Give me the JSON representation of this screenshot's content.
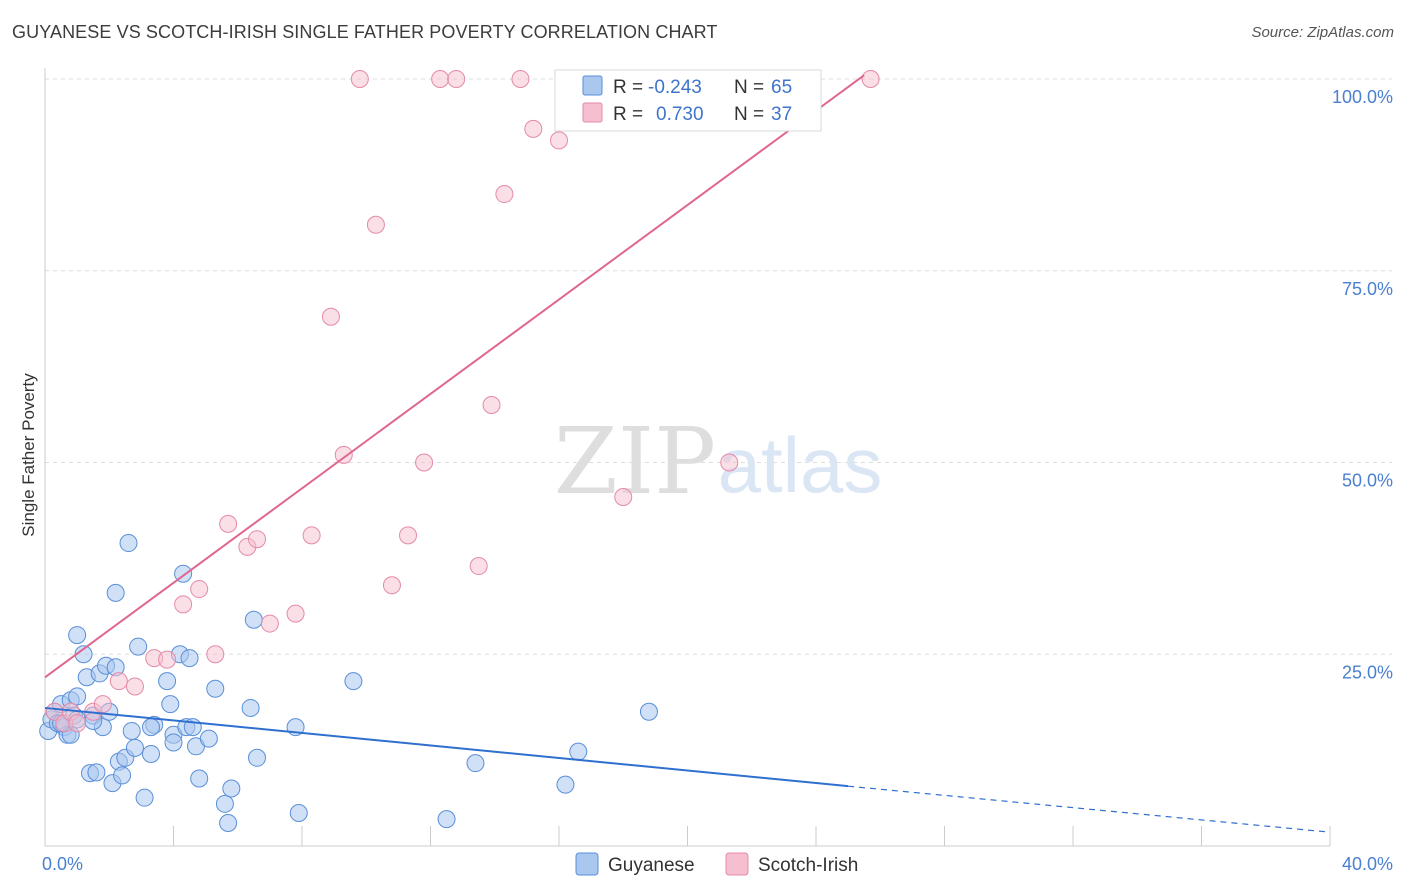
{
  "header": {
    "title": "GUYANESE VS SCOTCH-IRISH SINGLE FATHER POVERTY CORRELATION CHART",
    "source": "Source: ZipAtlas.com"
  },
  "watermark": {
    "zip": "ZIP",
    "atlas": "atlas"
  },
  "colors": {
    "guyanese_fill": "#a9c7ef",
    "guyanese_stroke": "#5a8fd8",
    "guyanese_line": "#2f6fcf",
    "scotch_fill": "#f5bfd0",
    "scotch_stroke": "#e58aa8",
    "scotch_line": "#e06690",
    "tick_label": "#4a7fd1",
    "grid": "#dddddd"
  },
  "stats": [
    {
      "r_label": "R =",
      "r_value": "-0.243",
      "n_label": "N =",
      "n_value": "65"
    },
    {
      "r_label": "R =",
      "r_value": "0.730",
      "n_label": "N =",
      "n_value": "37"
    }
  ],
  "chart_data": {
    "type": "scatter",
    "title": "GUYANESE VS SCOTCH-IRISH SINGLE FATHER POVERTY CORRELATION CHART",
    "xlabel": "",
    "ylabel": "Single Father Poverty",
    "xlim": [
      0,
      40
    ],
    "ylim": [
      0,
      102
    ],
    "x_tick_labels": [
      "0.0%",
      "40.0%"
    ],
    "y_ticks": [
      25,
      50,
      75,
      100
    ],
    "y_tick_labels": [
      "25.0%",
      "50.0%",
      "75.0%",
      "100.0%"
    ],
    "grid": true,
    "legend_position": "bottom-center",
    "series": [
      {
        "name": "Guyanese",
        "r": -0.243,
        "n": 65,
        "trend": {
          "x_start": 0,
          "y_start": 18.0,
          "x_end": 25.0,
          "y_end": 7.8,
          "dashed_to_x": 40,
          "dashed_to_y": 1.8
        },
        "points": [
          [
            0.1,
            15.0
          ],
          [
            0.2,
            16.5
          ],
          [
            0.3,
            17.5
          ],
          [
            0.4,
            16.0
          ],
          [
            0.5,
            18.5
          ],
          [
            0.6,
            15.5
          ],
          [
            0.7,
            14.5
          ],
          [
            0.8,
            19.0
          ],
          [
            0.9,
            17.0
          ],
          [
            1.0,
            16.5
          ],
          [
            1.0,
            27.5
          ],
          [
            1.2,
            25.0
          ],
          [
            1.3,
            22.0
          ],
          [
            1.4,
            9.5
          ],
          [
            1.5,
            17.0
          ],
          [
            1.6,
            9.6
          ],
          [
            1.7,
            22.5
          ],
          [
            1.8,
            15.5
          ],
          [
            1.9,
            23.5
          ],
          [
            2.0,
            17.5
          ],
          [
            2.1,
            8.2
          ],
          [
            2.2,
            23.3
          ],
          [
            2.3,
            11.0
          ],
          [
            2.4,
            9.2
          ],
          [
            2.5,
            11.5
          ],
          [
            2.6,
            39.5
          ],
          [
            2.7,
            15.0
          ],
          [
            2.8,
            12.8
          ],
          [
            2.9,
            26.0
          ],
          [
            3.1,
            6.3
          ],
          [
            3.3,
            12.0
          ],
          [
            3.4,
            15.8
          ],
          [
            3.8,
            21.5
          ],
          [
            3.9,
            18.5
          ],
          [
            4.0,
            14.5
          ],
          [
            4.2,
            25.0
          ],
          [
            4.3,
            35.5
          ],
          [
            4.4,
            15.5
          ],
          [
            4.5,
            24.5
          ],
          [
            4.6,
            15.5
          ],
          [
            4.7,
            13.0
          ],
          [
            4.8,
            8.8
          ],
          [
            5.1,
            14.0
          ],
          [
            5.3,
            20.5
          ],
          [
            5.6,
            5.5
          ],
          [
            5.7,
            3.0
          ],
          [
            5.8,
            7.5
          ],
          [
            6.4,
            18.0
          ],
          [
            6.5,
            29.5
          ],
          [
            6.6,
            11.5
          ],
          [
            7.8,
            15.5
          ],
          [
            7.9,
            4.3
          ],
          [
            9.6,
            21.5
          ],
          [
            12.5,
            3.5
          ],
          [
            13.4,
            10.8
          ],
          [
            16.6,
            12.3
          ],
          [
            18.8,
            17.5
          ],
          [
            16.2,
            8.0
          ],
          [
            3.3,
            15.5
          ],
          [
            1.5,
            16.3
          ],
          [
            0.8,
            14.5
          ],
          [
            2.2,
            33.0
          ],
          [
            1.0,
            19.5
          ],
          [
            0.5,
            16.0
          ],
          [
            4.0,
            13.5
          ]
        ]
      },
      {
        "name": "Scotch-Irish",
        "r": 0.73,
        "n": 37,
        "trend": {
          "x_start": 0,
          "y_start": 22.0,
          "x_end": 25.5,
          "y_end": 100.5
        },
        "points": [
          [
            0.3,
            17.5
          ],
          [
            0.6,
            16.0
          ],
          [
            0.8,
            17.5
          ],
          [
            1.0,
            16.0
          ],
          [
            1.5,
            17.5
          ],
          [
            1.8,
            18.5
          ],
          [
            2.3,
            21.5
          ],
          [
            2.8,
            20.8
          ],
          [
            3.4,
            24.5
          ],
          [
            3.8,
            24.3
          ],
          [
            4.3,
            31.5
          ],
          [
            4.8,
            33.5
          ],
          [
            5.3,
            25.0
          ],
          [
            5.7,
            42.0
          ],
          [
            6.3,
            39.0
          ],
          [
            6.6,
            40.0
          ],
          [
            7.0,
            29.0
          ],
          [
            7.8,
            30.3
          ],
          [
            8.3,
            40.5
          ],
          [
            8.9,
            69.0
          ],
          [
            9.3,
            51.0
          ],
          [
            9.8,
            100.0
          ],
          [
            10.3,
            81.0
          ],
          [
            10.8,
            34.0
          ],
          [
            11.3,
            40.5
          ],
          [
            11.8,
            50.0
          ],
          [
            12.3,
            100.0
          ],
          [
            12.8,
            100.0
          ],
          [
            13.5,
            36.5
          ],
          [
            13.9,
            57.5
          ],
          [
            14.3,
            85.0
          ],
          [
            14.8,
            100.0
          ],
          [
            15.2,
            93.5
          ],
          [
            16.0,
            92.0
          ],
          [
            18.0,
            45.5
          ],
          [
            21.3,
            50.0
          ],
          [
            25.7,
            100.0
          ]
        ]
      }
    ]
  },
  "legend": {
    "items": [
      {
        "label": "Guyanese"
      },
      {
        "label": "Scotch-Irish"
      }
    ]
  }
}
